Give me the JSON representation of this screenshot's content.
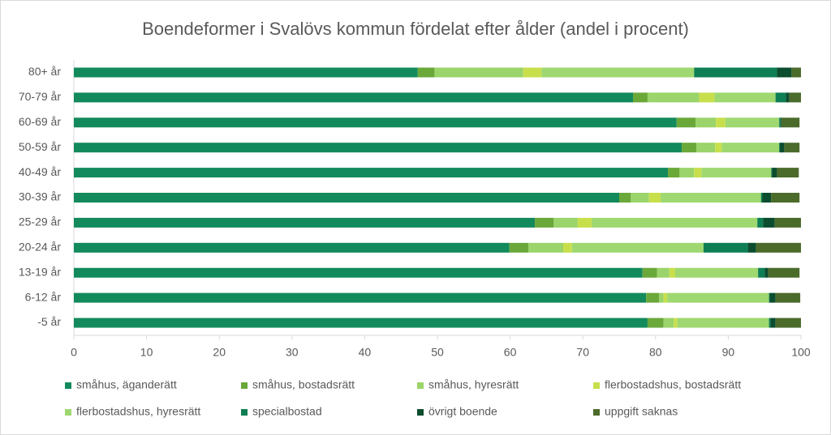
{
  "chart_data": {
    "type": "stacked-bar-horizontal",
    "title": "Boendeformer  i Svalövs kommun fördelat efter ålder (andel i procent)",
    "categories": [
      "80+ år",
      "70-79 år",
      "60-69 år",
      "50-59 år",
      "40-49 år",
      "30-39 år",
      "25-29 år",
      "20-24 år",
      "13-19 år",
      "6-12 år",
      "-5 år"
    ],
    "series": [
      {
        "name": "småhus, äganderätt",
        "color": "#138a5c",
        "values": [
          47.3,
          76.9,
          82.9,
          83.6,
          81.7,
          75.0,
          63.4,
          59.9,
          78.2,
          78.7,
          78.9
        ]
      },
      {
        "name": "småhus, bostadsrätt",
        "color": "#6aa83a",
        "values": [
          2.3,
          2.0,
          2.6,
          2.0,
          1.6,
          1.6,
          2.6,
          2.6,
          2.0,
          1.8,
          2.2
        ]
      },
      {
        "name": "småhus, hyresrätt",
        "color": "#9bd46a",
        "values": [
          12.2,
          7.1,
          2.8,
          2.6,
          2.0,
          2.5,
          3.3,
          4.8,
          1.7,
          0.6,
          1.4
        ]
      },
      {
        "name": "flerbostadshus, bostadsrätt",
        "color": "#c8df4c",
        "values": [
          2.5,
          2.1,
          1.3,
          0.9,
          1.0,
          1.6,
          1.9,
          1.2,
          0.8,
          0.5,
          0.5
        ]
      },
      {
        "name": "flerbostadshus, hyresrätt",
        "color": "#9fd870",
        "values": [
          21.0,
          8.4,
          7.4,
          7.9,
          9.6,
          13.8,
          22.8,
          18.1,
          11.4,
          14.0,
          12.6
        ]
      },
      {
        "name": "specialbostad",
        "color": "#0e7f54",
        "values": [
          11.4,
          1.4,
          0.2,
          0.1,
          0.1,
          0.2,
          0.8,
          6.1,
          0.9,
          0.1,
          0.2
        ]
      },
      {
        "name": "övrigt boende",
        "color": "#0b4d2e",
        "values": [
          2.0,
          0.5,
          0.1,
          0.6,
          0.7,
          1.2,
          1.6,
          1.1,
          0.5,
          0.8,
          0.7
        ]
      },
      {
        "name": "uppgift saknas",
        "color": "#4b6b2b",
        "values": [
          1.3,
          1.6,
          2.5,
          2.1,
          3.0,
          3.9,
          3.6,
          6.2,
          4.3,
          3.4,
          3.5
        ]
      }
    ],
    "xlim": [
      0,
      100
    ],
    "xticks": [
      0,
      10,
      20,
      30,
      40,
      50,
      60,
      70,
      80,
      90,
      100
    ]
  }
}
